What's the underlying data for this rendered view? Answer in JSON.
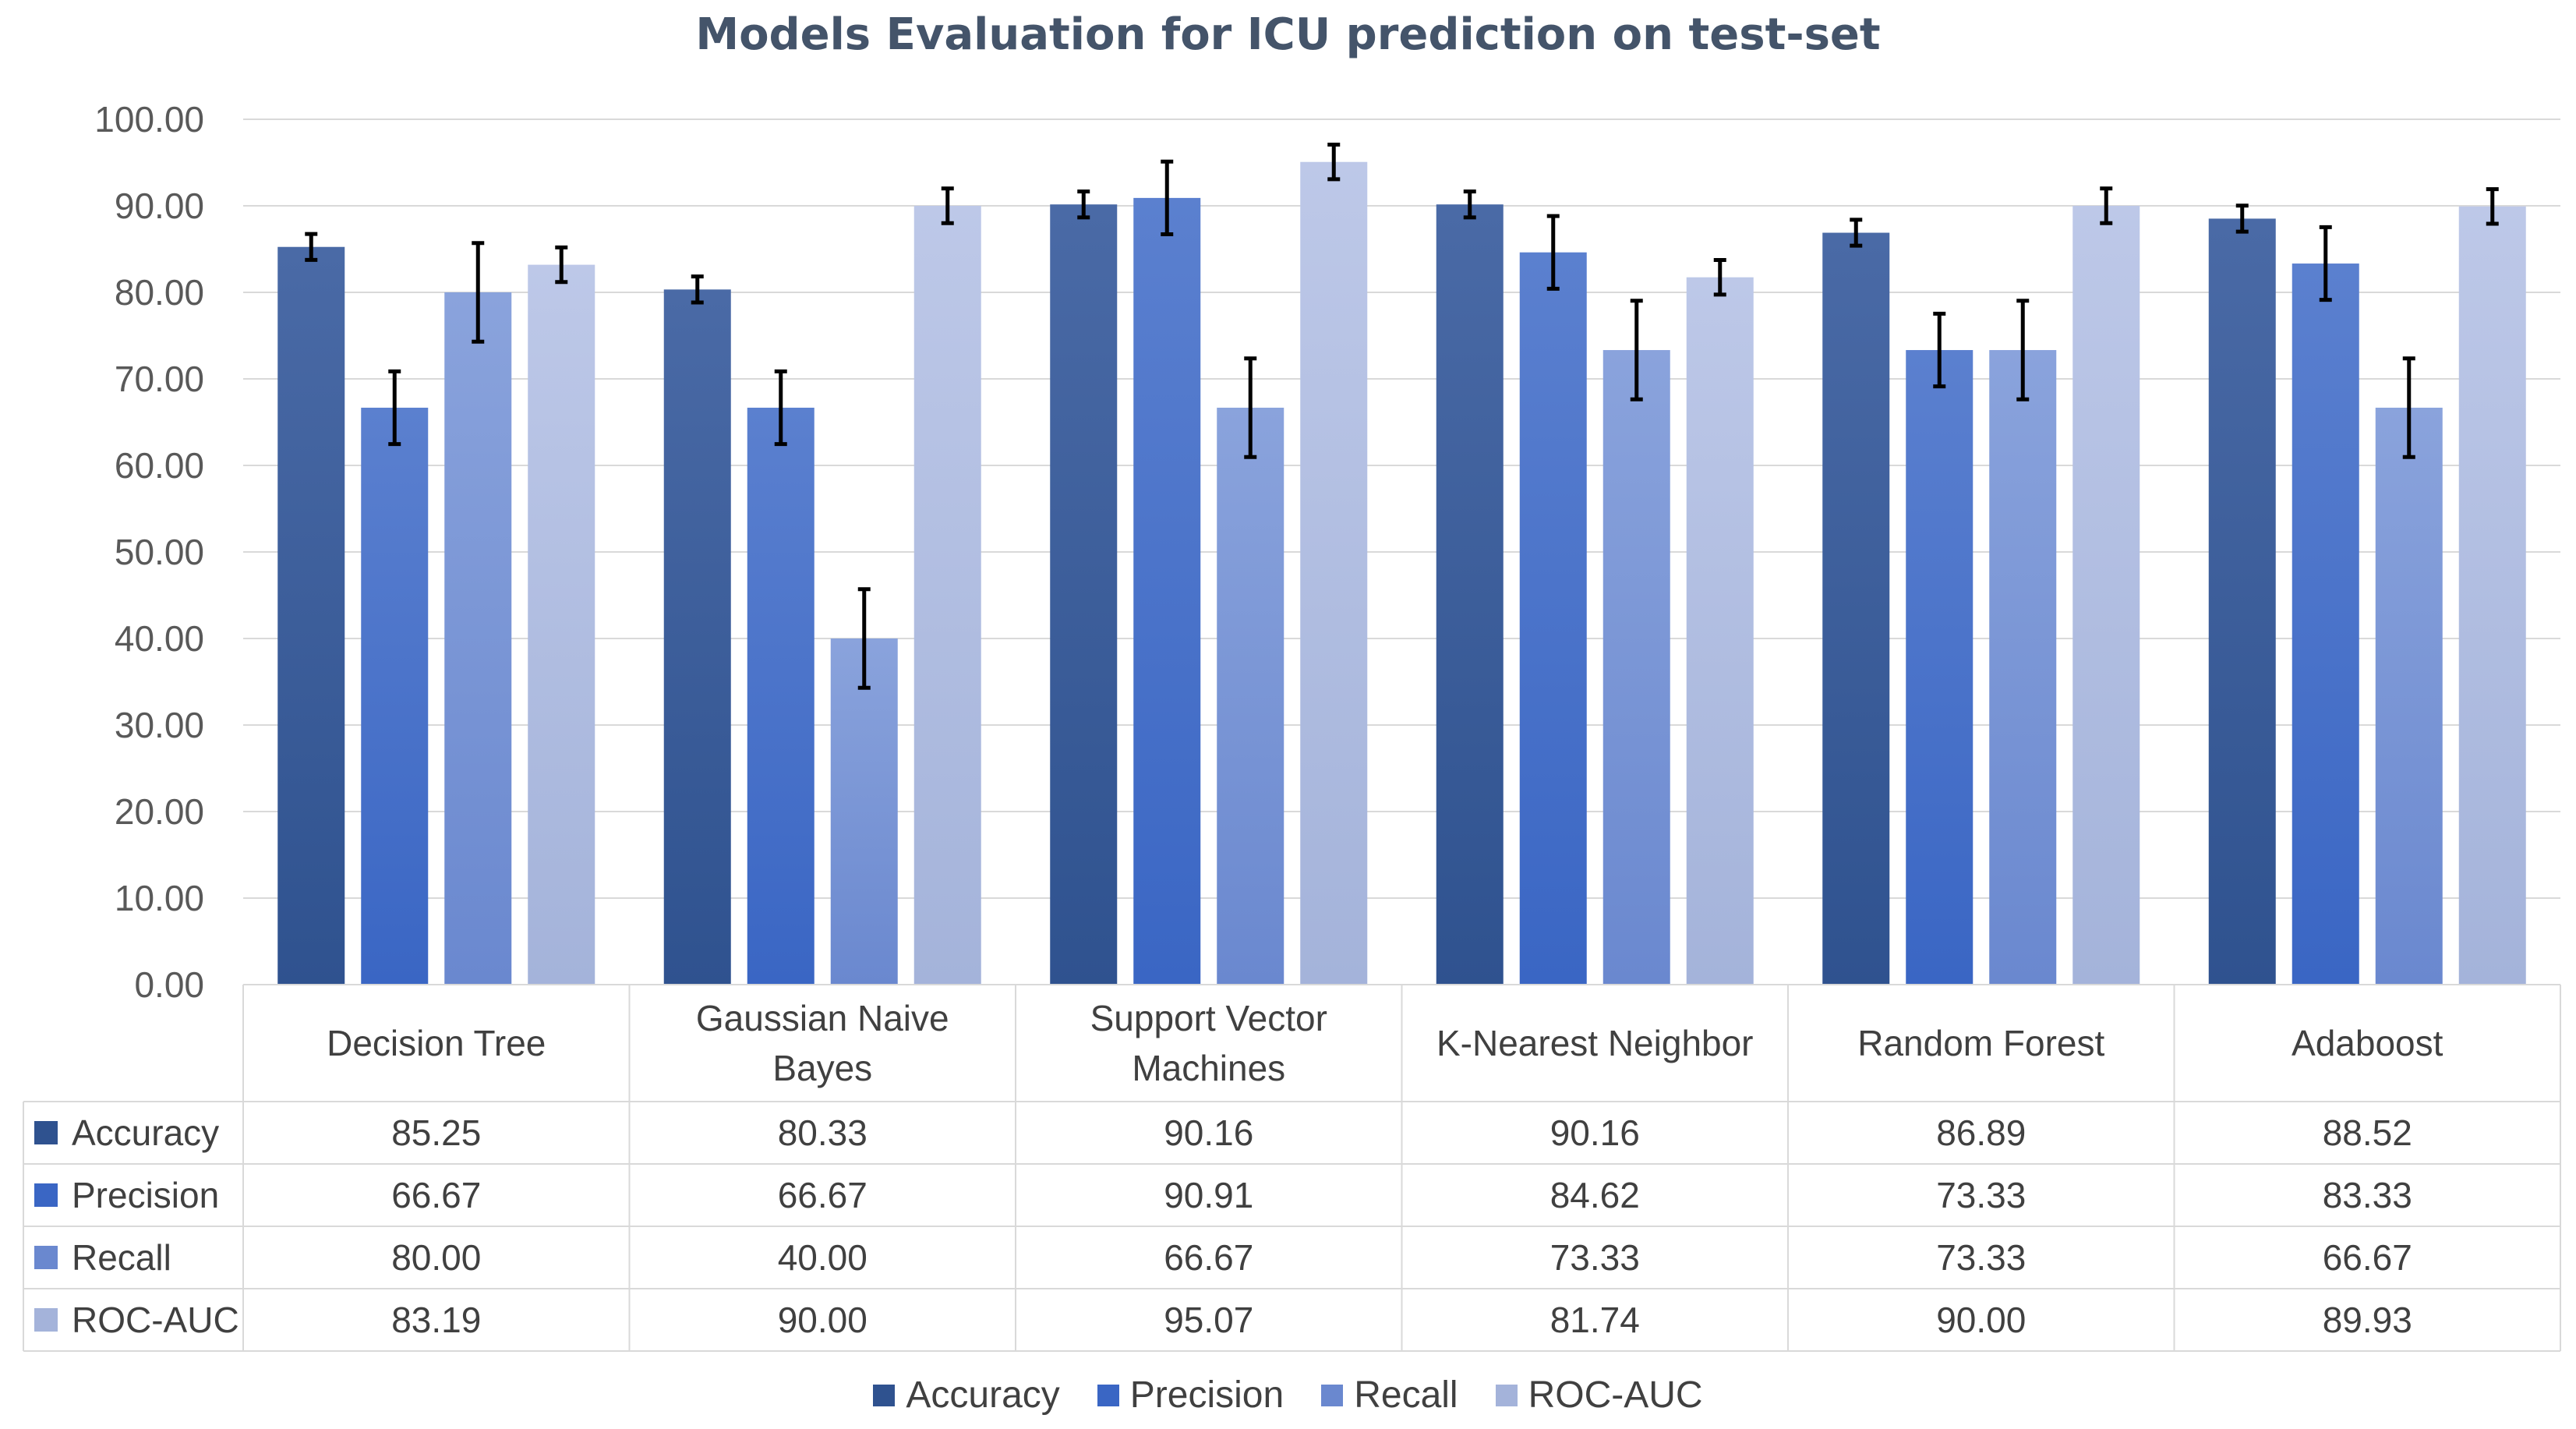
{
  "chart_data": {
    "type": "bar",
    "title": "Models Evaluation for ICU prediction on test-set",
    "categories": [
      [
        "Decision Tree"
      ],
      [
        "Gaussian Naive",
        "Bayes"
      ],
      [
        "Support Vector",
        "Machines"
      ],
      [
        "K-Nearest Neighbor"
      ],
      [
        "Random Forest"
      ],
      [
        "Adaboost"
      ]
    ],
    "ylim": [
      0,
      100
    ],
    "yticks": [
      "0.00",
      "10.00",
      "20.00",
      "30.00",
      "40.00",
      "50.00",
      "60.00",
      "70.00",
      "80.00",
      "90.00",
      "100.00"
    ],
    "grid": true,
    "legend_position": "bottom",
    "series": [
      {
        "name": "Accuracy",
        "color": "#2f528f",
        "color_light": "#4a6aa6",
        "values": [
          85.25,
          80.33,
          90.16,
          90.16,
          86.89,
          88.52
        ],
        "labels": [
          "85.25",
          "80.33",
          "90.16",
          "90.16",
          "86.89",
          "88.52"
        ],
        "errors": [
          1.5,
          1.5,
          1.5,
          1.5,
          1.5,
          1.5
        ]
      },
      {
        "name": "Precision",
        "color": "#3a66c4",
        "color_light": "#5b80cf",
        "values": [
          66.67,
          66.67,
          90.91,
          84.62,
          73.33,
          83.33
        ],
        "labels": [
          "66.67",
          "66.67",
          "90.91",
          "84.62",
          "73.33",
          "83.33"
        ],
        "errors": [
          4.2,
          4.2,
          4.2,
          4.2,
          4.2,
          4.2
        ]
      },
      {
        "name": "Recall",
        "color": "#6a88cf",
        "color_light": "#8aa3dc",
        "values": [
          80.0,
          40.0,
          66.67,
          73.33,
          73.33,
          66.67
        ],
        "labels": [
          "80.00",
          "40.00",
          "66.67",
          "73.33",
          "73.33",
          "66.67"
        ],
        "errors": [
          5.7,
          5.7,
          5.7,
          5.7,
          5.7,
          5.7
        ]
      },
      {
        "name": "ROC-AUC",
        "color": "#a4b3da",
        "color_light": "#bdc8e8",
        "values": [
          83.19,
          90.0,
          95.07,
          81.74,
          90.0,
          89.93
        ],
        "labels": [
          "83.19",
          "90.00",
          "95.07",
          "81.74",
          "90.00",
          "89.93"
        ],
        "errors": [
          2.0,
          2.0,
          2.0,
          2.0,
          2.0,
          2.0
        ]
      }
    ]
  },
  "colors": {
    "gridline": "#d9d9d9",
    "table_border": "#d9d9d9",
    "error_bar": "#000000",
    "title": "#44546a"
  }
}
